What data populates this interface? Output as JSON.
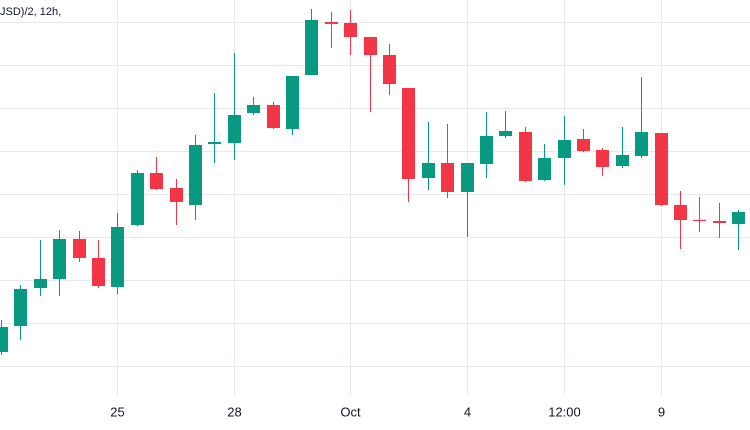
{
  "chart_data": {
    "type": "candlestick",
    "title": "JSD)/2, 12h,",
    "categories": [
      null,
      null,
      null,
      null,
      null,
      null,
      "25",
      null,
      null,
      null,
      null,
      null,
      "28",
      null,
      null,
      null,
      null,
      null,
      "Oct",
      null,
      null,
      null,
      null,
      null,
      "4",
      null,
      null,
      null,
      null,
      "12:00",
      null,
      null,
      null,
      null,
      "9",
      null,
      null,
      null,
      null
    ],
    "open": [
      48,
      74,
      112,
      121,
      161,
      142,
      113,
      175,
      227,
      212,
      195,
      256,
      257,
      287,
      295,
      271,
      325,
      378,
      377,
      363,
      345,
      312,
      222,
      237,
      208,
      236,
      264,
      268,
      220,
      242,
      261,
      250,
      234,
      244,
      267,
      195,
      180,
      179,
      176
    ],
    "high": [
      80,
      115,
      160,
      170,
      169,
      160,
      187,
      230,
      243,
      221,
      265,
      307,
      347,
      303,
      298,
      324,
      391,
      388,
      390,
      363,
      356,
      312,
      278,
      276,
      237,
      288,
      289,
      273,
      256,
      284,
      271,
      252,
      273,
      323,
      267,
      209,
      203,
      197,
      190
    ],
    "low": [
      45,
      60,
      104,
      104,
      138,
      112,
      106,
      174,
      210,
      175,
      180,
      237,
      240,
      285,
      271,
      265,
      325,
      352,
      345,
      288,
      305,
      198,
      210,
      202,
      163,
      222,
      262,
      218,
      219,
      215,
      248,
      224,
      232,
      242,
      194,
      151,
      168,
      162,
      150
    ],
    "close": [
      73,
      111,
      121,
      161,
      142,
      114,
      173,
      227,
      211,
      198,
      255,
      258,
      285,
      295,
      272,
      324,
      380,
      376,
      363,
      345,
      316,
      221,
      237,
      208,
      237,
      264,
      269,
      219,
      242,
      260,
      249,
      233,
      245,
      268,
      195,
      180,
      179,
      177,
      188
    ],
    "up_color": "#089981",
    "down_color": "#f23645",
    "ylim": [
      5,
      400
    ],
    "yticks": [
      34,
      77,
      120,
      163,
      206,
      249,
      292,
      335,
      378
    ],
    "grid": true
  }
}
